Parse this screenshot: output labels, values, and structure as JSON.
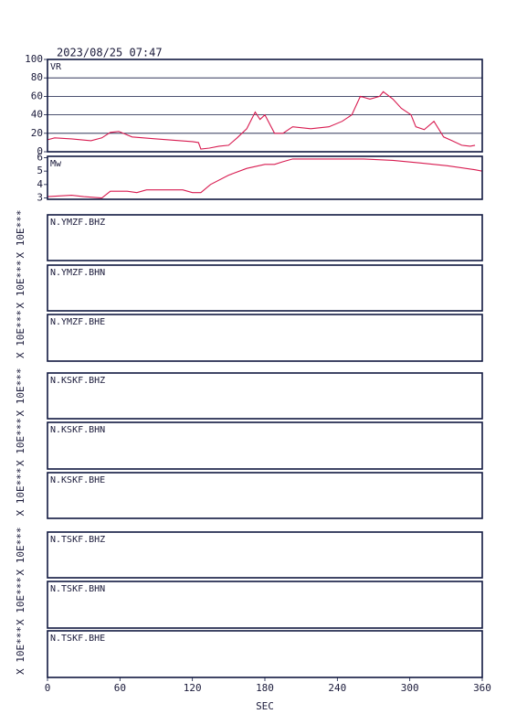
{
  "chart_data": [
    {
      "type": "line",
      "title": "2023/08/25 07:47",
      "label": "VR",
      "ylim": [
        0,
        100
      ],
      "yticks": [
        0,
        20,
        40,
        60,
        80,
        100
      ],
      "grid": true,
      "xlim": [
        0,
        360
      ],
      "series": [
        {
          "color": "#d81b50",
          "x": [
            0,
            6,
            20,
            36,
            45,
            52,
            59,
            70,
            90,
            110,
            120,
            125,
            127,
            134,
            142,
            150,
            157,
            165,
            172,
            176,
            180,
            188,
            195,
            203,
            218,
            233,
            244,
            252,
            259,
            267,
            275,
            278,
            286,
            293,
            301,
            305,
            312,
            320,
            328,
            335,
            343,
            350,
            354
          ],
          "values": [
            13,
            15,
            14,
            12,
            15,
            21,
            22,
            16,
            14,
            12,
            11,
            10,
            3,
            4,
            6,
            7,
            15,
            25,
            43,
            35,
            40,
            20,
            20,
            27,
            25,
            27,
            33,
            40,
            60,
            57,
            60,
            65,
            57,
            47,
            40,
            27,
            24,
            33,
            16,
            12,
            7,
            6,
            7
          ]
        }
      ]
    },
    {
      "type": "line",
      "label": "Mw",
      "ylim": [
        2.9,
        6.1
      ],
      "yticks": [
        3,
        4,
        5,
        6
      ],
      "xlim": [
        0,
        360
      ],
      "series": [
        {
          "color": "#d81b50",
          "x": [
            0,
            20,
            30,
            45,
            52,
            66,
            74,
            82,
            112,
            120,
            127,
            135,
            150,
            165,
            180,
            188,
            195,
            203,
            230,
            262,
            286,
            309,
            331,
            354,
            360
          ],
          "values": [
            3.1,
            3.2,
            3.1,
            3.0,
            3.5,
            3.5,
            3.4,
            3.6,
            3.6,
            3.4,
            3.4,
            4.0,
            4.7,
            5.2,
            5.5,
            5.5,
            5.7,
            5.9,
            5.9,
            5.9,
            5.8,
            5.6,
            5.4,
            5.1,
            5.0
          ]
        }
      ]
    },
    {
      "type": "line",
      "label": "N.YMZF.BHZ",
      "y_label": "X 10E***"
    },
    {
      "type": "line",
      "label": "N.YMZF.BHN",
      "y_label": "X 10E***"
    },
    {
      "type": "line",
      "label": "N.YMZF.BHE",
      "y_label": "X 10E***"
    },
    {
      "type": "line",
      "label": "N.KSKF.BHZ",
      "y_label": "X 10E***"
    },
    {
      "type": "line",
      "label": "N.KSKF.BHN",
      "y_label": "X 10E***"
    },
    {
      "type": "line",
      "label": "N.KSKF.BHE",
      "y_label": "X 10E***"
    },
    {
      "type": "line",
      "label": "N.TSKF.BHZ",
      "y_label": "X 10E***"
    },
    {
      "type": "line",
      "label": "N.TSKF.BHN",
      "y_label": "X 10E***"
    },
    {
      "type": "line",
      "label": "N.TSKF.BHE",
      "y_label": "X 10E***",
      "xlim": [
        0,
        360
      ],
      "xticks": [
        0,
        60,
        120,
        180,
        240,
        300,
        360
      ],
      "x_label": "SEC"
    }
  ]
}
